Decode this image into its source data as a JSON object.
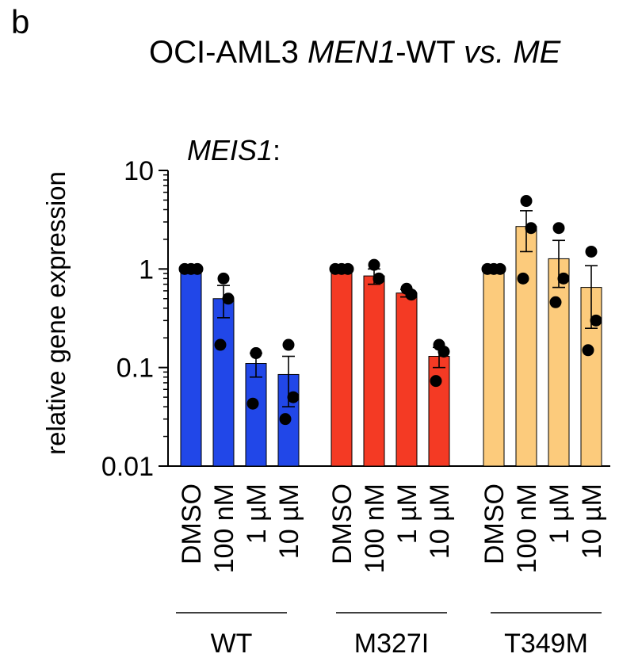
{
  "panel_letter": "b",
  "title": {
    "prefix": "OCI-AML3 ",
    "gene": "MEN1",
    "mid": "-WT ",
    "vs": "vs.",
    "rest": " ME"
  },
  "chart_data": {
    "type": "bar",
    "title": "",
    "subtitle_gene": "MEIS1",
    "subtitle_suffix": ":",
    "ylabel": "relative gene expression",
    "yscale": "log",
    "ylim": [
      0.01,
      10
    ],
    "yticks": [
      10,
      1,
      0.1,
      0.01
    ],
    "ytick_labels": [
      "10",
      "1",
      "0.1",
      "0.01"
    ],
    "grid": false,
    "groups": [
      {
        "name": "WT",
        "color": "#2147e8",
        "categories": [
          "DMSO",
          "100 nM",
          "1 µM",
          "10 µM"
        ],
        "values": [
          1.0,
          0.5,
          0.11,
          0.085
        ],
        "errors": [
          [
            1.0,
            1.0
          ],
          [
            0.32,
            0.68
          ],
          [
            0.08,
            0.14
          ],
          [
            0.04,
            0.13
          ]
        ],
        "points": [
          [
            1.0,
            1.0,
            1.0
          ],
          [
            0.8,
            0.5,
            0.17
          ],
          [
            0.14,
            0.14,
            0.043
          ],
          [
            0.17,
            0.05,
            0.03
          ]
        ]
      },
      {
        "name": "M327I",
        "color": "#f43a24",
        "categories": [
          "DMSO",
          "100 nM",
          "1 µM",
          "10 µM"
        ],
        "values": [
          1.0,
          0.85,
          0.57,
          0.13
        ],
        "errors": [
          [
            1.0,
            1.0
          ],
          [
            0.7,
            1.0
          ],
          [
            0.52,
            0.62
          ],
          [
            0.1,
            0.16
          ]
        ],
        "points": [
          [
            1.0,
            1.0,
            1.0
          ],
          [
            1.1,
            0.8,
            0.8
          ],
          [
            0.63,
            0.55,
            0.55
          ],
          [
            0.17,
            0.145,
            0.073
          ]
        ]
      },
      {
        "name": "T349M",
        "color": "#fccb7c",
        "categories": [
          "DMSO",
          "100 nM",
          "1 µM",
          "10 µM"
        ],
        "values": [
          1.0,
          2.7,
          1.27,
          0.65
        ],
        "errors": [
          [
            1.0,
            1.0
          ],
          [
            1.5,
            3.9
          ],
          [
            0.65,
            1.95
          ],
          [
            0.25,
            1.08
          ]
        ],
        "points": [
          [
            1.0,
            1.0,
            1.0
          ],
          [
            4.9,
            2.6,
            0.8
          ],
          [
            2.6,
            0.8,
            0.46
          ],
          [
            1.5,
            0.3,
            0.15
          ]
        ]
      }
    ]
  }
}
